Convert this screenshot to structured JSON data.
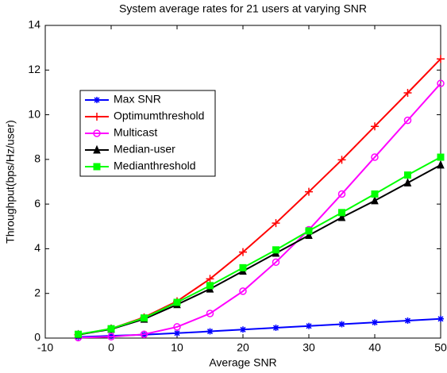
{
  "chart_data": {
    "type": "line",
    "title": "System average rates for 21 users at varying SNR",
    "xlabel": "Average SNR",
    "ylabel": "Throughput(bps/Hz/user)",
    "x": [
      -5,
      0,
      5,
      10,
      15,
      20,
      25,
      30,
      35,
      40,
      45,
      50
    ],
    "series": [
      {
        "name": "Max SNR",
        "color": "#0000ff",
        "marker": "star",
        "values": [
          0.05,
          0.1,
          0.15,
          0.22,
          0.3,
          0.38,
          0.46,
          0.54,
          0.62,
          0.7,
          0.78,
          0.86
        ]
      },
      {
        "name": "Optimumthreshold",
        "color": "#ff0000",
        "marker": "plus",
        "values": [
          0.15,
          0.42,
          0.93,
          1.65,
          2.65,
          3.85,
          5.15,
          6.55,
          7.98,
          9.48,
          10.98,
          12.5
        ]
      },
      {
        "name": "Multicast",
        "color": "#ff00ff",
        "marker": "circle",
        "values": [
          0.02,
          0.06,
          0.17,
          0.5,
          1.1,
          2.1,
          3.4,
          4.85,
          6.45,
          8.1,
          9.75,
          11.4
        ]
      },
      {
        "name": "Median-user",
        "color": "#000000",
        "marker": "triangle",
        "values": [
          0.15,
          0.4,
          0.85,
          1.5,
          2.2,
          3.0,
          3.8,
          4.6,
          5.4,
          6.15,
          6.95,
          7.75
        ]
      },
      {
        "name": "Medianthreshold",
        "color": "#00ff00",
        "marker": "square",
        "values": [
          0.17,
          0.42,
          0.9,
          1.6,
          2.35,
          3.15,
          3.95,
          4.8,
          5.62,
          6.45,
          7.3,
          8.1
        ]
      }
    ],
    "xlim": [
      -10,
      50
    ],
    "xticks": [
      -10,
      0,
      10,
      20,
      30,
      40,
      50
    ],
    "ylim": [
      0,
      14
    ],
    "yticks": [
      0,
      2,
      4,
      6,
      8,
      10,
      12,
      14
    ],
    "grid": false,
    "legend": "upper left"
  }
}
